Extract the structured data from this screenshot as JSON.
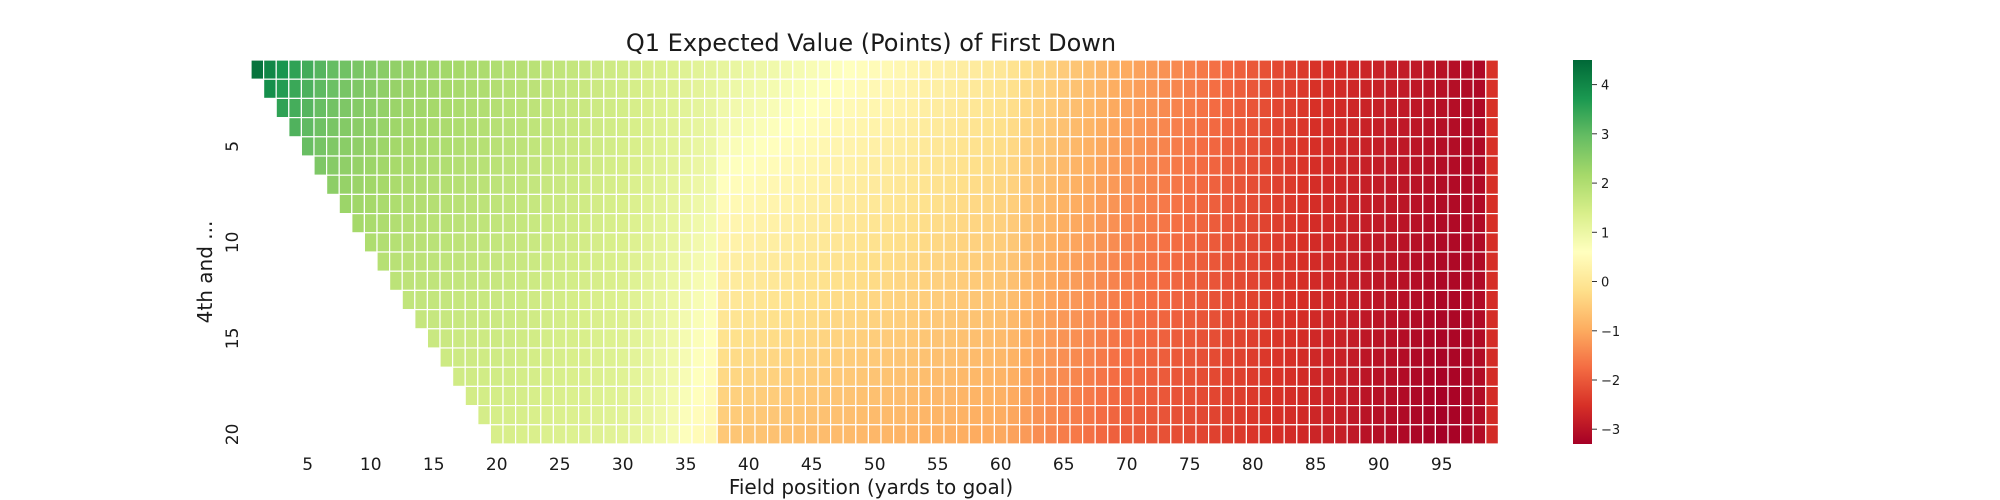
{
  "chart_data": {
    "type": "heatmap",
    "title": "Q1 Expected Value (Points) of First Down",
    "xlabel": "Field position (yards to goal)",
    "ylabel": "4th and ...",
    "x_range": [
      1,
      99
    ],
    "y_range": [
      1,
      20
    ],
    "x_ticks": [
      5,
      10,
      15,
      20,
      25,
      30,
      35,
      40,
      45,
      50,
      55,
      60,
      65,
      70,
      75,
      80,
      85,
      90,
      95
    ],
    "y_ticks": [
      5,
      10,
      15,
      20
    ],
    "colormap": "RdYlGn",
    "colorbar": {
      "min": -3.3,
      "max": 4.5,
      "ticks": [
        4,
        3,
        2,
        1,
        0,
        -1,
        -2,
        -3
      ]
    },
    "value_by_yardline_for_distance_1": [
      4.3,
      4.0,
      3.75,
      3.5,
      3.3,
      3.1,
      2.95,
      2.8,
      2.7,
      2.6,
      2.5,
      2.4,
      2.35,
      2.3,
      2.25,
      2.2,
      2.15,
      2.1,
      2.05,
      2.0,
      1.95,
      1.9,
      1.85,
      1.8,
      1.75,
      1.7,
      1.65,
      1.6,
      1.55,
      1.5,
      1.45,
      1.4,
      1.35,
      1.3,
      1.25,
      1.2,
      1.15,
      1.1,
      1.05,
      1.0,
      0.95,
      0.9,
      0.85,
      0.8,
      0.75,
      0.7,
      0.65,
      0.6,
      0.55,
      0.5,
      0.45,
      0.4,
      0.35,
      0.3,
      0.25,
      0.2,
      0.15,
      0.1,
      0.05,
      0.0,
      -0.1,
      -0.2,
      -0.3,
      -0.4,
      -0.5,
      -0.6,
      -0.7,
      -0.8,
      -0.9,
      -1.0,
      -1.1,
      -1.2,
      -1.3,
      -1.4,
      -1.5,
      -1.6,
      -1.7,
      -1.8,
      -1.9,
      -2.0,
      -2.1,
      -2.2,
      -2.3,
      -2.4,
      -2.5,
      -2.55,
      -2.6,
      -2.65,
      -2.7,
      -2.75,
      -2.8,
      -2.85,
      -2.9,
      -2.95,
      -3.0,
      -3.05,
      -3.1,
      -3.15,
      -2.5
    ],
    "value_by_yardline_for_distance_20": [
      0,
      0,
      0,
      0,
      0,
      0,
      0,
      0,
      0,
      0,
      0,
      0,
      0,
      0,
      0,
      0,
      0,
      0,
      0,
      1.4,
      1.4,
      1.38,
      1.36,
      1.34,
      1.32,
      1.3,
      1.28,
      1.26,
      1.22,
      1.18,
      1.1,
      1.0,
      0.9,
      0.8,
      0.65,
      0.5,
      0.4,
      -0.55,
      -0.6,
      -0.62,
      -0.64,
      -0.66,
      -0.68,
      -0.7,
      -0.72,
      -0.74,
      -0.76,
      -0.78,
      -0.8,
      -0.82,
      -0.84,
      -0.86,
      -0.88,
      -0.9,
      -0.92,
      -0.94,
      -0.96,
      -0.98,
      -1.0,
      -1.02,
      -1.1,
      -1.2,
      -1.35,
      -1.45,
      -1.55,
      -1.6,
      -1.7,
      -1.8,
      -1.9,
      -1.95,
      -2.0,
      -2.05,
      -2.1,
      -2.15,
      -2.2,
      -2.25,
      -2.3,
      -2.35,
      -2.4,
      -2.45,
      -2.5,
      -2.55,
      -2.6,
      -2.65,
      -2.7,
      -2.75,
      -2.8,
      -2.9,
      -3.0,
      -3.05,
      -3.1,
      -3.15,
      -3.2,
      -3.25,
      -3.3,
      -3.25,
      -3.2,
      -3.1,
      -2.6
    ]
  }
}
